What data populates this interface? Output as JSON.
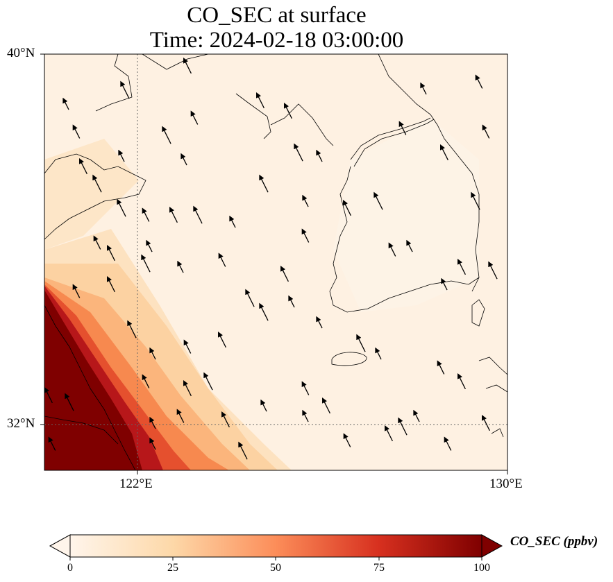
{
  "title_line1": "CO_SEC at surface",
  "title_line2": "Time: 2024-02-18 03:00:00",
  "lat_labels": [
    "40°N",
    "32°N"
  ],
  "lon_labels": [
    "122°E",
    "130°E"
  ],
  "colorbar": {
    "label": "CO_SEC (ppbv)",
    "ticks": [
      "0",
      "25",
      "50",
      "75",
      "100"
    ],
    "colors": [
      "#fff5eb",
      "#fdd8a8",
      "#fc8d59",
      "#d7301f",
      "#7f0000"
    ],
    "extend": "both"
  },
  "map": {
    "extent": {
      "lon": [
        120,
        130
      ],
      "lat": [
        31,
        40
      ]
    },
    "gridlines": {
      "lon": [
        122,
        130
      ],
      "lat": [
        32,
        40
      ],
      "style": "dotted"
    },
    "field": "CO_SEC concentration, high values in the southwest corner decreasing to the northeast",
    "wind_direction": "north-northwest"
  }
}
